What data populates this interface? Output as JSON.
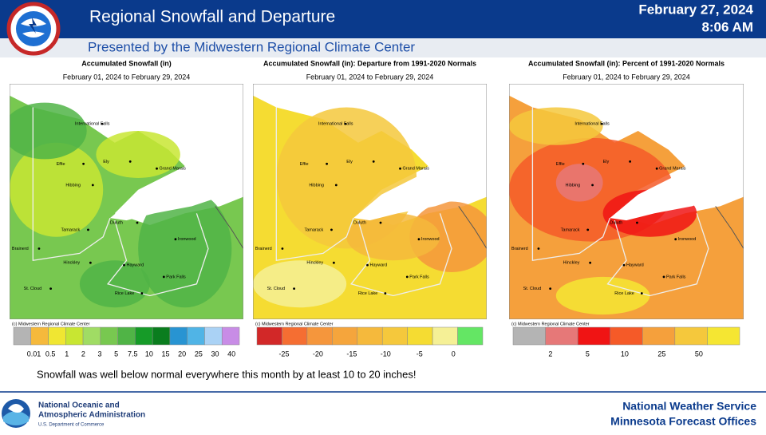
{
  "header": {
    "title": "Regional Snowfall and Departure",
    "subtitle": "Presented by the Midwestern Regional Climate Center",
    "date": "February 27, 2024",
    "time": "8:06 AM"
  },
  "cities": [
    "International Falls",
    "Effie",
    "Ely",
    "Grand Marais",
    "Hibbing",
    "Duluth",
    "Tamarack",
    "Ironwood",
    "Brainerd",
    "Hinckley",
    "Hayward",
    "Park Falls",
    "St. Cloud",
    "Rice Lake"
  ],
  "panels": [
    {
      "title": "Accumulated Snowfall (in)",
      "period": "February 01, 2024 to February 29, 2024",
      "credit": "(c) Midwestern Regional Climate Center",
      "legend_colors": [
        "#b4b4b4",
        "#f5b93c",
        "#f0e632",
        "#c8e632",
        "#a0dc64",
        "#78c850",
        "#50b446",
        "#169b28",
        "#0a7d1e",
        "#2894d2",
        "#50b4e6",
        "#aad2f5",
        "#c88ce6"
      ],
      "legend_labels": [
        0.01,
        0.5,
        1,
        2,
        3,
        5,
        7.5,
        10,
        15,
        20,
        25,
        30,
        40
      ]
    },
    {
      "title": "Accumulated Snowfall (in): Departure from 1991-2020 Normals",
      "period": "February 01, 2024 to February 29, 2024",
      "credit": "(c) Midwestern Regional Climate Center",
      "legend_colors": [
        "#d22828",
        "#f56e32",
        "#f5963c",
        "#f5a53c",
        "#f5b93c",
        "#f5c83c",
        "#f5dc32",
        "#f5f096",
        "#64e664"
      ],
      "legend_labels": [
        -25,
        -20,
        -15,
        -10,
        -5,
        0
      ]
    },
    {
      "title": "Accumulated Snowfall (in): Percent of 1991-2020 Normals",
      "period": "February 01, 2024 to February 29, 2024",
      "credit": "(c) Midwestern Regional Climate Center",
      "legend_colors": [
        "#b4b4b4",
        "#e67878",
        "#f01414",
        "#f55a28",
        "#f5a03c",
        "#f5c83c",
        "#f5e632"
      ],
      "legend_labels": [
        2,
        5,
        10,
        25,
        50
      ]
    }
  ],
  "caption": "Snowfall was well below normal everywhere this month by at least 10 to 20 inches!",
  "footer": {
    "noaa_line1": "National Oceanic and",
    "noaa_line2": "Atmospheric Administration",
    "noaa_line3": "U.S. Department of Commerce",
    "nws_line1": "National  Weather  Service",
    "nws_line2": "Minnesota  Forecast  Offices"
  }
}
